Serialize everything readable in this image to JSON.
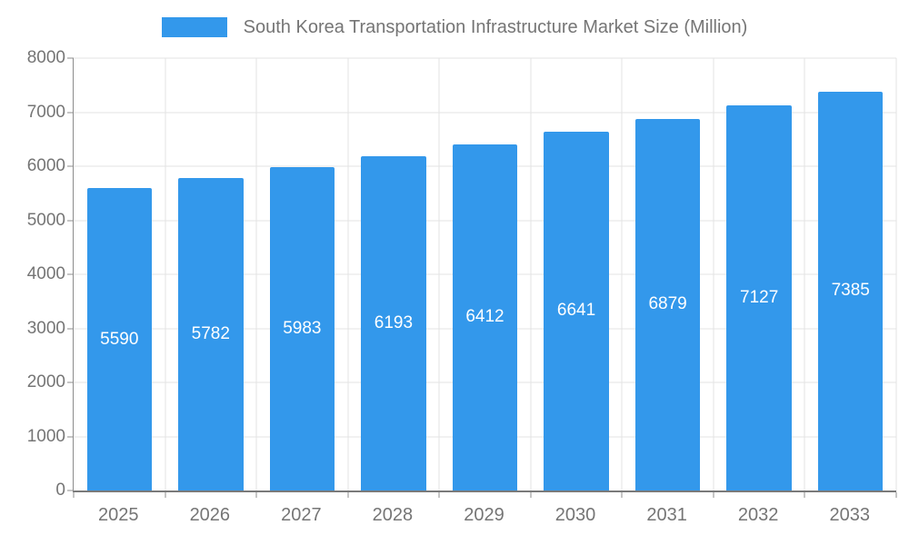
{
  "legend": {
    "label": "South Korea Transportation Infrastructure Market Size (Million)",
    "swatch_color": "#3398EB"
  },
  "chart_data": {
    "type": "bar",
    "title": "South Korea Transportation Infrastructure Market Size (Million)",
    "categories": [
      "2025",
      "2026",
      "2027",
      "2028",
      "2029",
      "2030",
      "2031",
      "2032",
      "2033"
    ],
    "values": [
      5590,
      5782,
      5983,
      6193,
      6412,
      6641,
      6879,
      7127,
      7385
    ],
    "xlabel": "",
    "ylabel": "",
    "ylim": [
      0,
      8000
    ],
    "ytick_step": 1000,
    "grid": true,
    "legend_position": "top",
    "bar_color": "#3398EB",
    "value_label_color": "#ffffff",
    "value_labels_inside_bars": true
  }
}
